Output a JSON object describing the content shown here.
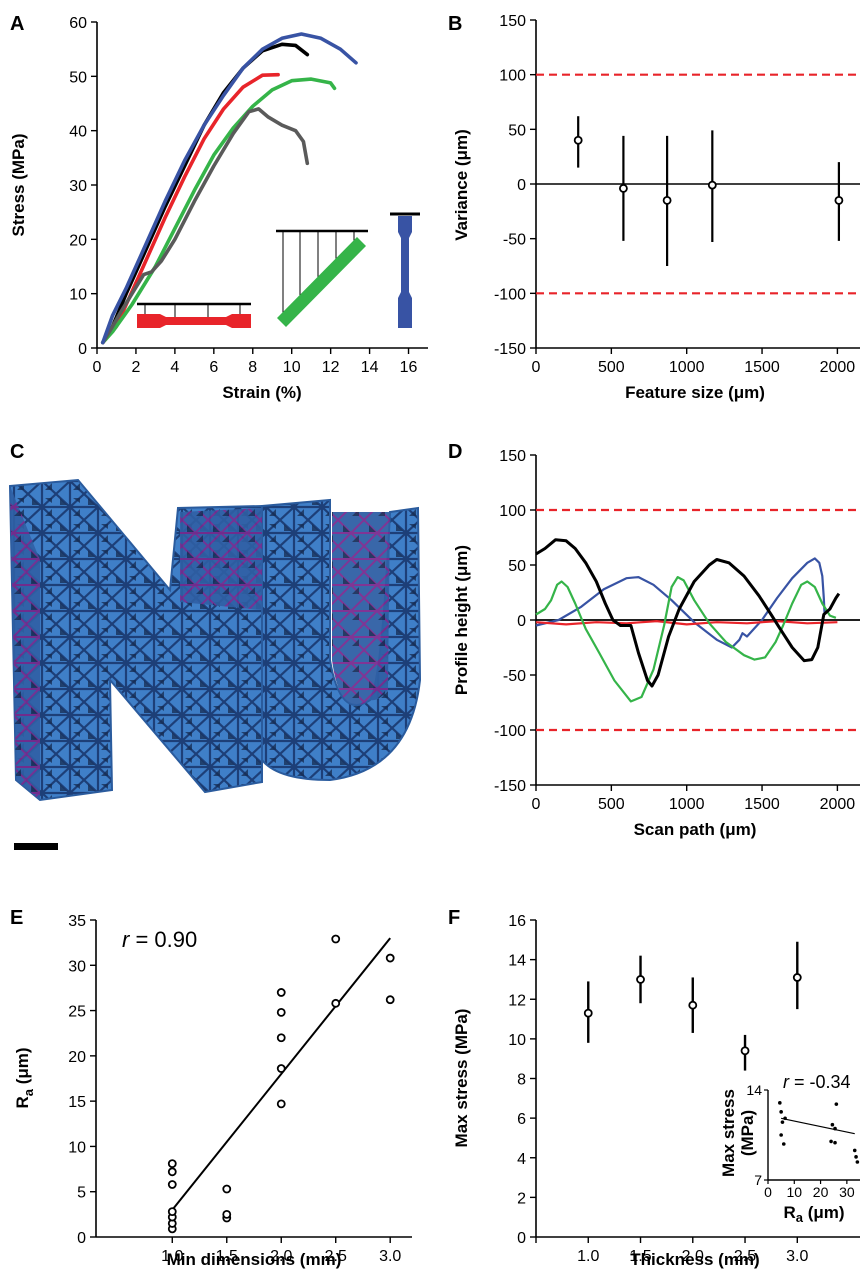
{
  "panel_labels": {
    "a": "A",
    "b": "B",
    "c": "C",
    "d": "D",
    "e": "E",
    "f": "F"
  },
  "colors": {
    "black": "#000000",
    "red": "#e8242a",
    "green": "#35b449",
    "gray": "#5a5a5a",
    "blue": "#3853a4",
    "ref_red": "#e8242a",
    "nu_blue": "#3f7fc8",
    "nu_purple": "#8a2a9a"
  },
  "chart_data": [
    {
      "id": "A",
      "type": "line",
      "xlabel": "Strain (%)",
      "ylabel": "Stress (MPa)",
      "xlim": [
        0,
        17
      ],
      "ylim": [
        0,
        60
      ],
      "xticks": [
        "0",
        "2",
        "4",
        "6",
        "8",
        "10",
        "12",
        "14",
        "16"
      ],
      "yticks": [
        "0",
        "10",
        "20",
        "30",
        "40",
        "50",
        "60"
      ],
      "series": [
        {
          "color": "black",
          "points": [
            [
              0.3,
              1
            ],
            [
              0.8,
              4
            ],
            [
              1.5,
              10
            ],
            [
              2.5,
              18
            ],
            [
              3.5,
              26
            ],
            [
              4.5,
              33.5
            ],
            [
              5.5,
              41
            ],
            [
              6.5,
              47
            ],
            [
              7.5,
              51.5
            ],
            [
              8.5,
              54.7
            ],
            [
              9.5,
              55.9
            ],
            [
              10.2,
              55.7
            ],
            [
              10.8,
              54
            ]
          ]
        },
        {
          "color": "red",
          "points": [
            [
              0.3,
              1
            ],
            [
              1.0,
              4
            ],
            [
              1.5,
              8
            ],
            [
              2.5,
              16
            ],
            [
              3.5,
              24
            ],
            [
              4.5,
              31.5
            ],
            [
              5.5,
              38.5
            ],
            [
              6.5,
              44
            ],
            [
              7.5,
              48
            ],
            [
              8.5,
              50.2
            ],
            [
              9.3,
              50.3
            ]
          ]
        },
        {
          "color": "green",
          "points": [
            [
              0.3,
              1
            ],
            [
              0.8,
              3
            ],
            [
              1.8,
              8
            ],
            [
              3,
              15
            ],
            [
              4,
              22
            ],
            [
              5,
              29
            ],
            [
              6,
              35.5
            ],
            [
              7,
              40.5
            ],
            [
              8,
              44.5
            ],
            [
              9,
              47.5
            ],
            [
              10,
              49.2
            ],
            [
              11,
              49.5
            ],
            [
              12,
              48.8
            ],
            [
              12.2,
              47.8
            ]
          ]
        },
        {
          "color": "gray",
          "points": [
            [
              0.3,
              1
            ],
            [
              0.8,
              4
            ],
            [
              1.2,
              6.5
            ],
            [
              1.8,
              10
            ],
            [
              2.4,
              13.5
            ],
            [
              2.8,
              14
            ],
            [
              3.3,
              16
            ],
            [
              4,
              20
            ],
            [
              5,
              27
            ],
            [
              6,
              33.5
            ],
            [
              7,
              39.5
            ],
            [
              7.8,
              43.5
            ],
            [
              8.3,
              44
            ],
            [
              8.8,
              42.5
            ],
            [
              9.5,
              41
            ],
            [
              10.2,
              40
            ],
            [
              10.6,
              38
            ],
            [
              10.8,
              34
            ]
          ]
        },
        {
          "color": "blue",
          "points": [
            [
              0.3,
              1
            ],
            [
              0.8,
              6
            ],
            [
              1.5,
              11
            ],
            [
              2.5,
              19
            ],
            [
              3.5,
              27
            ],
            [
              4.5,
              34.5
            ],
            [
              5.5,
              41
            ],
            [
              6.5,
              46.5
            ],
            [
              7.5,
              51.5
            ],
            [
              8.5,
              55
            ],
            [
              9.5,
              57
            ],
            [
              10.5,
              57.8
            ],
            [
              11.5,
              57
            ],
            [
              12.5,
              55
            ],
            [
              13.3,
              52.5
            ]
          ]
        }
      ]
    },
    {
      "id": "B",
      "type": "scatter",
      "xlabel": "Feature size (μm)",
      "ylabel": "Variance (μm)",
      "xlim": [
        0,
        2150
      ],
      "ylim": [
        -150,
        150
      ],
      "xticks": [
        "0",
        "500",
        "1000",
        "1500",
        "2000"
      ],
      "yticks": [
        "150",
        "100",
        "50",
        "0",
        "-50",
        "-100",
        "-150"
      ],
      "reference_lines": [
        100,
        -100
      ],
      "points": [
        {
          "x": 280,
          "y": 40,
          "low": 15,
          "high": 62
        },
        {
          "x": 580,
          "y": -4,
          "low": -52,
          "high": 44
        },
        {
          "x": 870,
          "y": -15,
          "low": -75,
          "high": 44
        },
        {
          "x": 1170,
          "y": -1,
          "low": -53,
          "high": 49
        },
        {
          "x": 2010,
          "y": -15,
          "low": -52,
          "high": 20
        }
      ]
    },
    {
      "id": "D",
      "type": "line",
      "xlabel": "Scan path (μm)",
      "ylabel": "Profile height (μm)",
      "xlim": [
        0,
        2150
      ],
      "ylim": [
        -150,
        150
      ],
      "xticks": [
        "0",
        "500",
        "1000",
        "1500",
        "2000"
      ],
      "yticks": [
        "150",
        "100",
        "50",
        "0",
        "-50",
        "-100",
        "-150"
      ],
      "reference_lines": [
        100,
        -100
      ],
      "series": [
        {
          "color": "blue",
          "points": [
            [
              0,
              -5
            ],
            [
              150,
              0
            ],
            [
              300,
              12
            ],
            [
              450,
              28
            ],
            [
              600,
              38
            ],
            [
              680,
              39
            ],
            [
              780,
              32
            ],
            [
              900,
              18
            ],
            [
              1050,
              -2
            ],
            [
              1200,
              -18
            ],
            [
              1300,
              -25
            ],
            [
              1350,
              -18
            ],
            [
              1370,
              -12
            ],
            [
              1400,
              -15
            ],
            [
              1500,
              0
            ],
            [
              1600,
              20
            ],
            [
              1700,
              38
            ],
            [
              1800,
              52
            ],
            [
              1850,
              56
            ],
            [
              1880,
              52
            ],
            [
              1900,
              40
            ],
            [
              1910,
              20
            ],
            [
              1915,
              5
            ]
          ]
        },
        {
          "color": "red",
          "points": [
            [
              0,
              -2
            ],
            [
              200,
              -4
            ],
            [
              400,
              -2
            ],
            [
              600,
              -3
            ],
            [
              800,
              -1
            ],
            [
              1000,
              -4
            ],
            [
              1200,
              -2
            ],
            [
              1400,
              -3
            ],
            [
              1600,
              -1
            ],
            [
              1800,
              -3
            ],
            [
              2000,
              -2
            ]
          ]
        },
        {
          "color": "green",
          "points": [
            [
              0,
              5
            ],
            [
              60,
              10
            ],
            [
              100,
              18
            ],
            [
              140,
              32
            ],
            [
              170,
              35
            ],
            [
              210,
              30
            ],
            [
              260,
              15
            ],
            [
              330,
              -8
            ],
            [
              420,
              -30
            ],
            [
              520,
              -55
            ],
            [
              630,
              -74
            ],
            [
              700,
              -70
            ],
            [
              780,
              -45
            ],
            [
              850,
              -5
            ],
            [
              900,
              30
            ],
            [
              940,
              39
            ],
            [
              980,
              36
            ],
            [
              1050,
              18
            ],
            [
              1150,
              -3
            ],
            [
              1260,
              -20
            ],
            [
              1380,
              -32
            ],
            [
              1450,
              -36
            ],
            [
              1520,
              -34
            ],
            [
              1590,
              -20
            ],
            [
              1640,
              -5
            ],
            [
              1700,
              15
            ],
            [
              1760,
              32
            ],
            [
              1800,
              35
            ],
            [
              1850,
              30
            ],
            [
              1900,
              15
            ],
            [
              1950,
              4
            ],
            [
              1990,
              2
            ]
          ]
        },
        {
          "color": "black",
          "points": [
            [
              0,
              60
            ],
            [
              60,
              65
            ],
            [
              130,
              73
            ],
            [
              200,
              72
            ],
            [
              260,
              65
            ],
            [
              330,
              52
            ],
            [
              400,
              35
            ],
            [
              460,
              15
            ],
            [
              510,
              0
            ],
            [
              560,
              -5
            ],
            [
              630,
              -5
            ],
            [
              680,
              -30
            ],
            [
              740,
              -55
            ],
            [
              770,
              -60
            ],
            [
              810,
              -50
            ],
            [
              880,
              -15
            ],
            [
              950,
              10
            ],
            [
              1050,
              35
            ],
            [
              1150,
              50
            ],
            [
              1200,
              55
            ],
            [
              1280,
              52
            ],
            [
              1380,
              40
            ],
            [
              1480,
              22
            ],
            [
              1560,
              5
            ],
            [
              1620,
              -8
            ],
            [
              1700,
              -25
            ],
            [
              1780,
              -37
            ],
            [
              1830,
              -36
            ],
            [
              1870,
              -25
            ],
            [
              1890,
              -10
            ],
            [
              1910,
              5
            ],
            [
              1950,
              10
            ],
            [
              1990,
              20
            ],
            [
              2010,
              24
            ]
          ]
        }
      ]
    },
    {
      "id": "E",
      "type": "scatter",
      "xlabel": "Min dimensions (mm)",
      "ylabel_main": "R",
      "ylabel_sub": "a",
      "ylabel_unit": " (μm)",
      "xlim": [
        0.3,
        3.2
      ],
      "ylim": [
        0,
        35
      ],
      "xticks": [
        "1.0",
        "1.5",
        "2.0",
        "2.5",
        "3.0"
      ],
      "yticks": [
        "0",
        "5",
        "10",
        "15",
        "20",
        "25",
        "30",
        "35"
      ],
      "annotation": {
        "var": "r",
        "value": " = 0.90"
      },
      "fit_line": [
        [
          1.0,
          3
        ],
        [
          3.0,
          33
        ]
      ],
      "points": [
        {
          "x": 1.0,
          "y": 0.9
        },
        {
          "x": 1.0,
          "y": 1.5
        },
        {
          "x": 1.0,
          "y": 2.2
        },
        {
          "x": 1.0,
          "y": 2.8
        },
        {
          "x": 1.0,
          "y": 5.8
        },
        {
          "x": 1.0,
          "y": 7.2
        },
        {
          "x": 1.0,
          "y": 8.1
        },
        {
          "x": 1.5,
          "y": 2.1
        },
        {
          "x": 1.5,
          "y": 2.5
        },
        {
          "x": 1.5,
          "y": 5.3
        },
        {
          "x": 2.0,
          "y": 14.7
        },
        {
          "x": 2.0,
          "y": 18.6
        },
        {
          "x": 2.0,
          "y": 22.0
        },
        {
          "x": 2.0,
          "y": 24.8
        },
        {
          "x": 2.0,
          "y": 27.0
        },
        {
          "x": 2.5,
          "y": 25.8
        },
        {
          "x": 2.5,
          "y": 32.9
        },
        {
          "x": 3.0,
          "y": 26.2
        },
        {
          "x": 3.0,
          "y": 30.8
        }
      ]
    },
    {
      "id": "F",
      "type": "scatter",
      "xlabel": "Thickness (mm)",
      "ylabel": "Max stress (MPa)",
      "xlim": [
        0.5,
        3.6
      ],
      "ylim": [
        0,
        16
      ],
      "xticks": [
        "1.0",
        "1.5",
        "2.0",
        "2.5",
        "3.0"
      ],
      "yticks": [
        "0",
        "2",
        "4",
        "6",
        "8",
        "10",
        "12",
        "14",
        "16"
      ],
      "points": [
        {
          "x": 1.0,
          "y": 11.3,
          "low": 9.8,
          "high": 12.9
        },
        {
          "x": 1.5,
          "y": 13.0,
          "low": 11.8,
          "high": 14.2
        },
        {
          "x": 2.0,
          "y": 11.7,
          "low": 10.3,
          "high": 13.1
        },
        {
          "x": 2.5,
          "y": 9.4,
          "low": 8.4,
          "high": 10.2
        },
        {
          "x": 3.0,
          "y": 13.1,
          "low": 11.5,
          "high": 14.9
        }
      ],
      "inset": {
        "type": "scatter",
        "ylabel_line1": "Max stress",
        "ylabel_line2": "(MPa)",
        "xlabel_main": "R",
        "xlabel_sub": "a",
        "xlabel_unit": " (μm)",
        "xlim": [
          0,
          35
        ],
        "ylim": [
          7,
          14
        ],
        "xticks": [
          "0",
          "10",
          "20",
          "30"
        ],
        "yticks": [
          "14",
          "7"
        ],
        "annotation": {
          "var": "r",
          "value": " = -0.34"
        },
        "fit_line": [
          [
            5,
            11.8
          ],
          [
            33,
            10.6
          ]
        ],
        "points": [
          {
            "x": 4.5,
            "y": 13.0
          },
          {
            "x": 5.0,
            "y": 12.3
          },
          {
            "x": 5.5,
            "y": 11.5
          },
          {
            "x": 5.0,
            "y": 10.5
          },
          {
            "x": 6.0,
            "y": 9.8
          },
          {
            "x": 6.5,
            "y": 11.8
          },
          {
            "x": 24.5,
            "y": 11.3
          },
          {
            "x": 25.5,
            "y": 11.0
          },
          {
            "x": 26.0,
            "y": 12.9
          },
          {
            "x": 24.0,
            "y": 10.0
          },
          {
            "x": 25.5,
            "y": 9.9
          },
          {
            "x": 33.0,
            "y": 9.3
          },
          {
            "x": 33.5,
            "y": 8.8
          },
          {
            "x": 34.0,
            "y": 8.4
          }
        ]
      }
    }
  ]
}
